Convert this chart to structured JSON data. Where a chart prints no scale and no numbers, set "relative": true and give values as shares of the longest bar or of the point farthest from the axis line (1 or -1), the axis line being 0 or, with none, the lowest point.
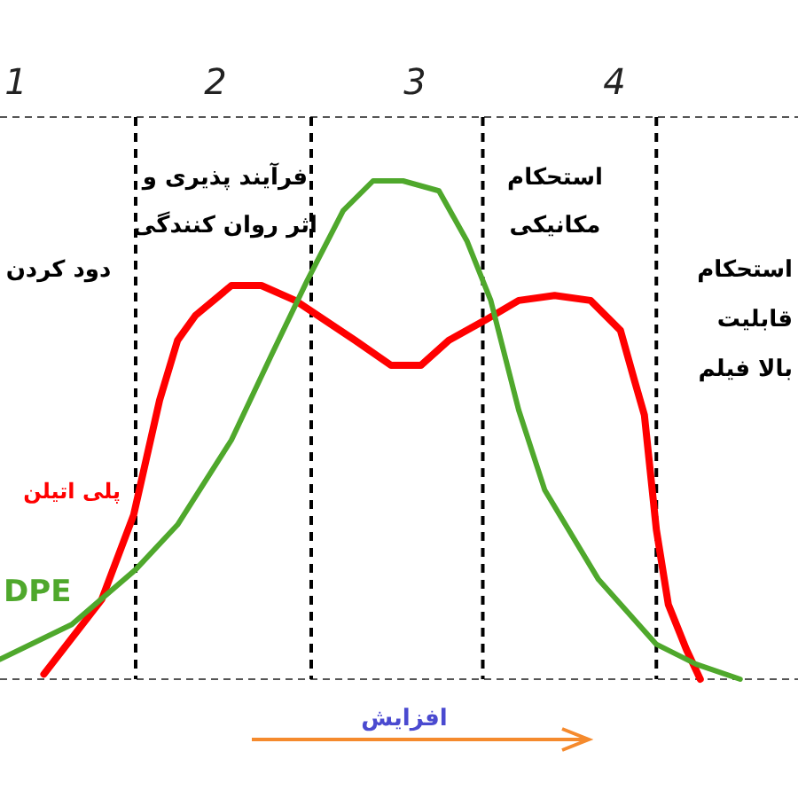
{
  "chart_data": {
    "type": "line",
    "relative": true,
    "xlim": [
      0.92,
      4.92
    ],
    "xticks": [
      1,
      2,
      3,
      4
    ],
    "series": [
      {
        "name": "پلی اتیلن",
        "color": "#ff0000",
        "x": [
          1.14,
          1.43,
          1.59,
          1.72,
          1.81,
          1.9,
          2.08,
          2.23,
          2.4,
          2.7,
          2.88,
          3.03,
          3.17,
          3.35,
          3.52,
          3.7,
          3.88,
          4.03,
          4.1,
          4.15,
          4.21,
          4.27,
          4.36,
          4.43
        ],
        "values": [
          0.01,
          0.16,
          0.33,
          0.56,
          0.68,
          0.73,
          0.79,
          0.79,
          0.76,
          0.68,
          0.63,
          0.63,
          0.68,
          0.72,
          0.76,
          0.77,
          0.76,
          0.7,
          0.6,
          0.53,
          0.3,
          0.15,
          0.06,
          0.0
        ]
      },
      {
        "name": "DPE",
        "color": "#4fa82c",
        "x": [
          0.92,
          1.28,
          1.6,
          1.81,
          2.08,
          2.28,
          2.46,
          2.64,
          2.79,
          2.94,
          3.12,
          3.26,
          3.38,
          3.52,
          3.65,
          3.92,
          4.21,
          4.41,
          4.63
        ],
        "values": [
          0.04,
          0.11,
          0.22,
          0.31,
          0.48,
          0.65,
          0.8,
          0.94,
          1.0,
          1.0,
          0.98,
          0.88,
          0.76,
          0.54,
          0.38,
          0.2,
          0.07,
          0.03,
          0.0
        ]
      }
    ],
    "ref_lines": [
      {
        "axis": "x",
        "value": 1.6,
        "color": "#000000",
        "line_style": "dashed"
      },
      {
        "axis": "x",
        "value": 2.48,
        "color": "#000000",
        "line_style": "dashed"
      },
      {
        "axis": "x",
        "value": 3.34,
        "color": "#000000",
        "line_style": "dashed"
      },
      {
        "axis": "x",
        "value": 4.21,
        "color": "#000000",
        "line_style": "dashed"
      }
    ],
    "annotations": [
      "دود کردن",
      "فرآیند پذیری و\nاثر روان کنندگی",
      "استحکام\nمکانیکی",
      "استحکام\nقابلیت\nبالا فیلم",
      "افزایش"
    ],
    "marker": "none",
    "line_style": "solid"
  }
}
